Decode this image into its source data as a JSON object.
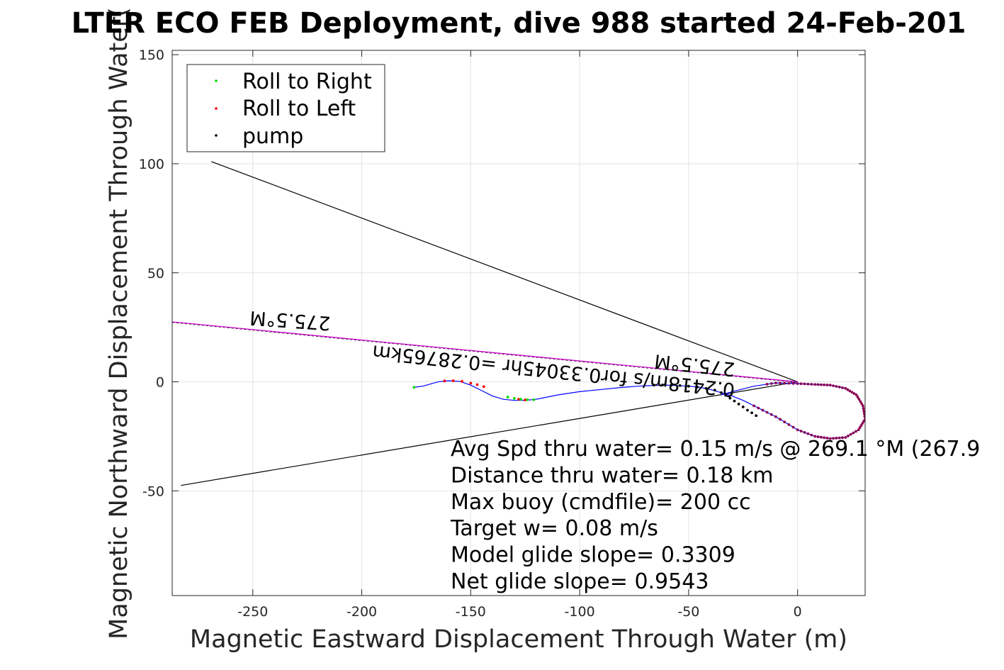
{
  "chart_data": {
    "type": "scatter",
    "title": "LTER ECO FEB Deployment, dive 988 started 24-Feb-201",
    "xlabel": "Magnetic Eastward Displacement Through Water (m)",
    "ylabel": "Magnetic Northward Displacement Through Water(",
    "xlim": [
      -287,
      31
    ],
    "ylim": [
      -98,
      152
    ],
    "xticks": [
      -250,
      -200,
      -150,
      -100,
      -50,
      0
    ],
    "yticks": [
      -50,
      0,
      50,
      100,
      150
    ],
    "xtick_labels": [
      "-250",
      "-200",
      "-150",
      "-100",
      "-50",
      "0"
    ],
    "ytick_labels": [
      "-50",
      "0",
      "50",
      "100",
      "150"
    ],
    "grid": true,
    "legend": {
      "placement": "top-left",
      "entries": [
        {
          "label": "Roll to Right",
          "color": "#00dd00"
        },
        {
          "label": "Roll to Left",
          "color": "#ff0000"
        },
        {
          "label": "pump",
          "color": "#000000"
        }
      ]
    },
    "colors": {
      "track": "#0000ff",
      "heading_line": "#cc00cc",
      "cone_line": "#000000",
      "marker_dots": "#8b0050"
    },
    "track": {
      "x": [
        -176,
        -172,
        -165,
        -160,
        -155,
        -150,
        -145,
        -140,
        -135,
        -130,
        -125,
        -120,
        -110,
        -100,
        -90,
        -80,
        -70,
        -60,
        -50,
        -45,
        -40,
        -35,
        -30,
        -25,
        -20,
        -10,
        0,
        8,
        15,
        22,
        28,
        31,
        30,
        27,
        22,
        15,
        8,
        0,
        -10,
        -20,
        -30,
        -35
      ],
      "y": [
        -2.5,
        -2,
        0,
        0.5,
        0.2,
        -1.5,
        -4,
        -6.5,
        -8,
        -8.5,
        -8.5,
        -8,
        -6,
        -4.5,
        -3.5,
        -2.5,
        -1.8,
        -1.5,
        -2,
        -2.5,
        -3.5,
        -5,
        -6.5,
        -8.5,
        -11,
        -16,
        -22,
        -25,
        -26,
        -25.5,
        -22,
        -17,
        -11,
        -6,
        -3,
        -1.5,
        -1.2,
        -0.8,
        -0.5,
        -2,
        -4.5,
        -6
      ]
    },
    "heading_line": {
      "x": [
        -287,
        0
      ],
      "y": [
        27.5,
        0
      ]
    },
    "cone_lines": [
      {
        "x": [
          -269,
          0
        ],
        "y": [
          101,
          0
        ]
      },
      {
        "x": [
          -283,
          0
        ],
        "y": [
          -47.5,
          0
        ]
      }
    ],
    "roll_to_right_points": {
      "x": [
        -176,
        -133,
        -130,
        -127,
        -124,
        -121
      ],
      "y": [
        -2.5,
        -7,
        -7.6,
        -8,
        -8.2,
        -8.2
      ]
    },
    "roll_to_left_points": {
      "x": [
        -162,
        -158,
        -154,
        -150,
        -147,
        -144,
        -128,
        -125
      ],
      "y": [
        0.4,
        0.5,
        0.2,
        -0.6,
        -1.3,
        -2.2,
        -8,
        -8.3
      ]
    },
    "pump_points": {
      "x": [
        -66,
        -62,
        -58,
        -54,
        -50,
        -46,
        -42,
        -38,
        -35,
        -33,
        -31,
        -29,
        -27,
        -25,
        -23,
        -21,
        -19
      ],
      "y": [
        -1.5,
        -1.4,
        -1.5,
        -1.7,
        -2,
        -2.4,
        -3,
        -3.8,
        -5,
        -6.2,
        -7.5,
        -8.8,
        -10.2,
        -11.5,
        -13,
        -14.2,
        -15.5
      ]
    },
    "annotations": {
      "heading_far": "275.5°M",
      "heading_near": "275.5°M",
      "speed_line": "0.2418m/s for0.33045hr =0.28765km",
      "stats": [
        "Avg Spd thru water=  0.15 m/s @ 269.1 °M (267.9",
        "Distance thru water=  0.18 km",
        "Max buoy (cmdfile)= 200 cc",
        "Target w= 0.08 m/s",
        "Model glide slope= 0.3309",
        "Net glide slope= 0.9543"
      ]
    }
  }
}
